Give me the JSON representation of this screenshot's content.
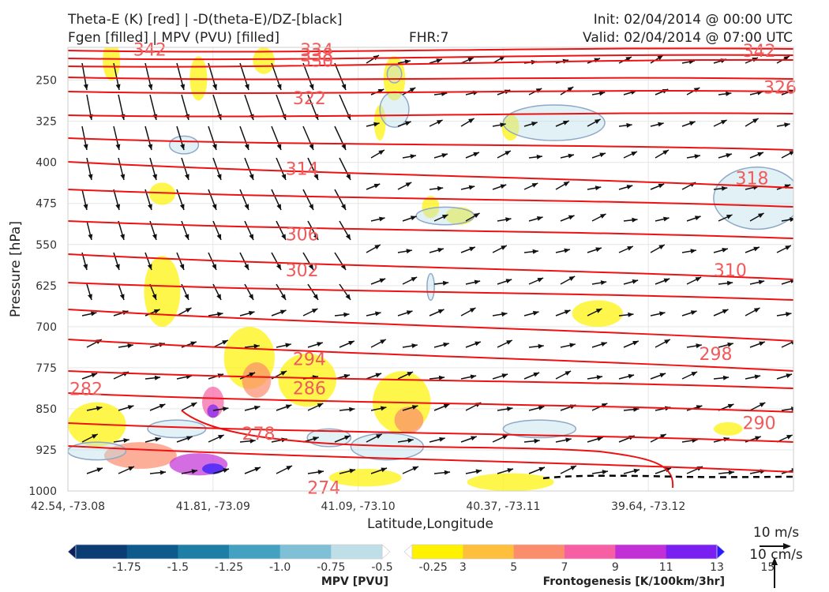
{
  "header": {
    "title_left_1": "Theta-E (K) [red] | -D(theta-E)/DZ-[black]",
    "title_left_2": "Fgen [filled] | MPV (PVU) [filled]",
    "fhr": "FHR:7",
    "init": "Init: 02/04/2014 @ 00:00 UTC",
    "valid": "Valid: 02/04/2014 @ 07:00 UTC"
  },
  "chart_data": {
    "type": "cross-section",
    "xlabel": "Latitude,Longitude",
    "ylabel": "Pressure [hPa]",
    "x_ticks": [
      "42.54, -73.08",
      "41.81, -73.09",
      "41.09, -73.10",
      "40.37, -73.11",
      "39.64, -73.12"
    ],
    "y_ticks": [
      250,
      325,
      400,
      475,
      550,
      625,
      700,
      775,
      850,
      925,
      1000
    ],
    "ylim": [
      1000,
      190
    ],
    "grid": true,
    "theta_e_color": "#ee1111",
    "contour_labels": [
      {
        "text": "342",
        "x": 0.09,
        "p": 195
      },
      {
        "text": "334",
        "x": 0.32,
        "p": 196
      },
      {
        "text": "338",
        "x": 0.32,
        "p": 205
      },
      {
        "text": "330",
        "x": 0.32,
        "p": 215
      },
      {
        "text": "326",
        "x": 0.97,
        "p": 264
      },
      {
        "text": "342",
        "x": 0.93,
        "p": 197
      },
      {
        "text": "322",
        "x": 0.31,
        "p": 284
      },
      {
        "text": "318",
        "x": 0.92,
        "p": 430
      },
      {
        "text": "314",
        "x": 0.3,
        "p": 413
      },
      {
        "text": "310",
        "x": 0.89,
        "p": 598
      },
      {
        "text": "306",
        "x": 0.3,
        "p": 532
      },
      {
        "text": "302",
        "x": 0.3,
        "p": 598
      },
      {
        "text": "298",
        "x": 0.87,
        "p": 751
      },
      {
        "text": "294",
        "x": 0.31,
        "p": 760
      },
      {
        "text": "290",
        "x": 0.93,
        "p": 877
      },
      {
        "text": "286",
        "x": 0.31,
        "p": 813
      },
      {
        "text": "282",
        "x": 0.0,
        "p": 815
      },
      {
        "text": "278",
        "x": 0.24,
        "p": 896
      },
      {
        "text": "274",
        "x": 0.33,
        "p": 995
      }
    ],
    "theta_e_levels": [
      274,
      278,
      282,
      286,
      290,
      294,
      298,
      302,
      306,
      310,
      314,
      318,
      322,
      326,
      330,
      334,
      338,
      342
    ],
    "mpv_colorbar": {
      "title": "MPV [PVU]",
      "ticks": [
        "-1.75",
        "-1.5",
        "-1.25",
        "-1.0",
        "-0.75",
        "-0.5",
        "-0.25"
      ],
      "colors": [
        "#08215c",
        "#0b3c74",
        "#0f5a8c",
        "#1d7fa6",
        "#45a1c2",
        "#7fc0d6",
        "#bfdfe8",
        "#ffffff"
      ]
    },
    "fgen_colorbar": {
      "title": "Frontogenesis [K/100km/3hr]",
      "ticks": [
        "3",
        "5",
        "7",
        "9",
        "11",
        "13",
        "15"
      ],
      "colors": [
        "#ffffff",
        "#fff200",
        "#fdbf3c",
        "#fb8c6c",
        "#f75fa4",
        "#c22fd6",
        "#7a1ff2",
        "#2a1bff"
      ]
    },
    "vector_legend": {
      "wind": "10 m/s",
      "vertical": "10 cm/s"
    }
  }
}
